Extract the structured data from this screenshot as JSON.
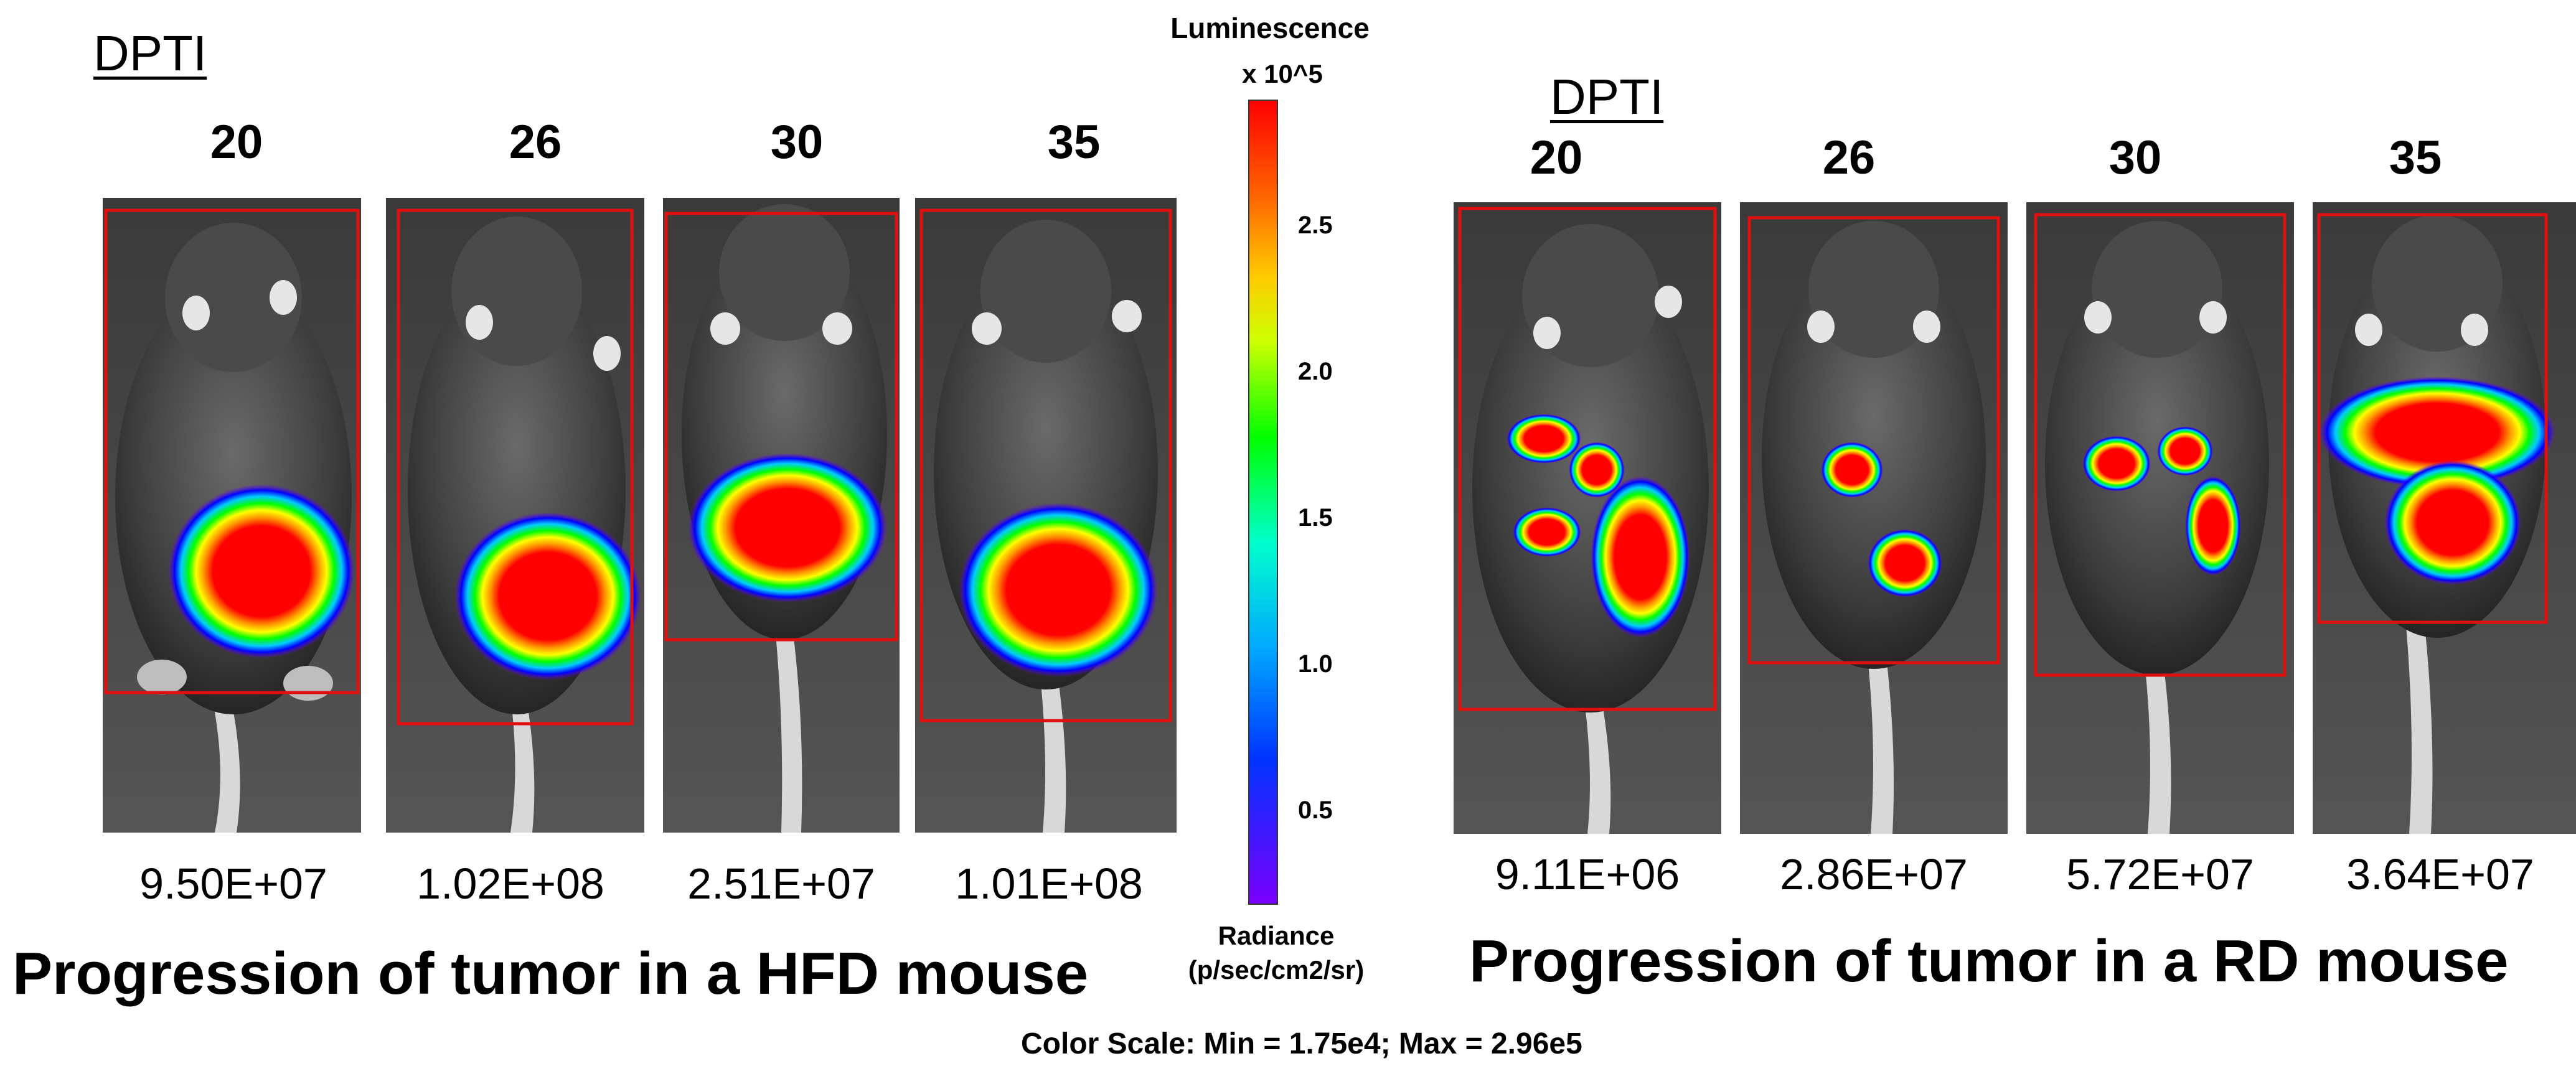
{
  "legend": {
    "title": "Luminescence",
    "unit_multiplier": "x 10^5",
    "ticks": [
      "2.5",
      "2.0",
      "1.5",
      "1.0",
      "0.5"
    ],
    "radiance_label": "Radiance",
    "radiance_units": "(p/sec/cm2/sr)",
    "color_stops": [
      "#7a00ff",
      "#0000ff",
      "#00aaff",
      "#00ffcc",
      "#00ff00",
      "#ffff00",
      "#ff9900",
      "#ff0000"
    ]
  },
  "hfd_group": {
    "dpti_label": "DPTI",
    "days": [
      "20",
      "26",
      "30",
      "35"
    ],
    "values": [
      "9.50E+07",
      "1.02E+08",
      "2.51E+07",
      "1.01E+08"
    ],
    "caption": "Progression of tumor in  a HFD mouse"
  },
  "rd_group": {
    "dpti_label": "DPTI",
    "days": [
      "20",
      "26",
      "30",
      "35"
    ],
    "values": [
      "9.11E+06",
      "2.86E+07",
      "5.72E+07",
      "3.64E+07"
    ],
    "caption": "Progression of tumor in a RD mouse"
  },
  "footer": "Color Scale: Min = 1.75e4; Max = 2.96e5",
  "colors": {
    "roi_border": "#e01010",
    "tumor_core": "#ff0000",
    "background": "#ffffff"
  }
}
